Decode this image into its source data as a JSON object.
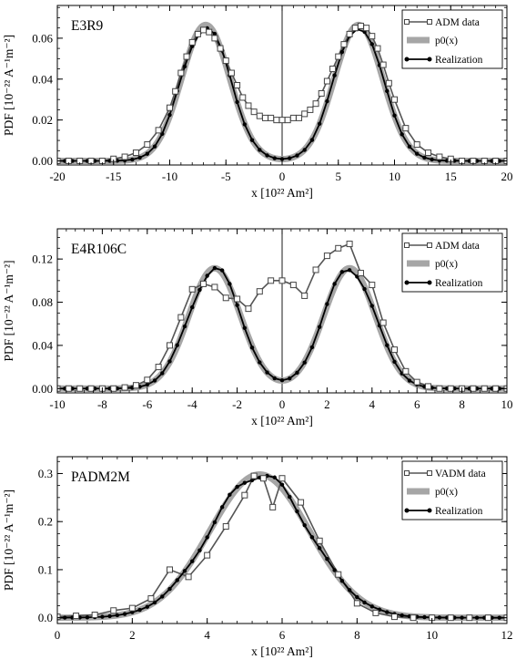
{
  "chart_data": [
    {
      "type": "line",
      "title": "E3R9",
      "xlabel": "x [10²² Am²]",
      "ylabel": "PDF [10⁻²² A⁻¹m⁻²]",
      "xlim": [
        -20,
        20
      ],
      "ylim": [
        -0.002,
        0.076
      ],
      "xticks": [
        -20,
        -15,
        -10,
        -5,
        0,
        5,
        10,
        15,
        20
      ],
      "yticks": [
        0.0,
        0.02,
        0.04,
        0.06
      ],
      "ytick_labels": [
        "0.00",
        "0.02",
        "0.04",
        "0.06"
      ],
      "zero_line": true,
      "legend": {
        "position": "top-right",
        "entries": [
          "ADM data",
          "p0(x)",
          "Realization"
        ]
      },
      "model": "bimodal",
      "params": {
        "mu": 6.8,
        "sigma": 2.15,
        "amp": 0.0665
      },
      "series": [
        {
          "name": "ADM data",
          "style": "squares",
          "x": [
            -20,
            -19,
            -18,
            -17,
            -16,
            -15,
            -14,
            -13,
            -12,
            -11,
            -10,
            -9.5,
            -9,
            -8.5,
            -8,
            -7.5,
            -7,
            -6.5,
            -6,
            -5.5,
            -5,
            -4.5,
            -4,
            -3.5,
            -3,
            -2.5,
            -2,
            -1.5,
            -1,
            -0.5,
            0,
            0.5,
            1,
            1.5,
            2,
            2.5,
            3,
            3.5,
            4,
            4.5,
            5,
            5.5,
            6,
            6.5,
            7,
            7.5,
            8,
            8.5,
            9,
            9.5,
            10,
            11,
            12,
            13,
            14,
            15,
            16,
            17,
            18,
            19,
            20
          ],
          "y": [
            0.0,
            0.0,
            0.0,
            0.0,
            0.0,
            0.001,
            0.002,
            0.004,
            0.008,
            0.015,
            0.026,
            0.034,
            0.043,
            0.051,
            0.058,
            0.062,
            0.064,
            0.063,
            0.06,
            0.055,
            0.049,
            0.043,
            0.037,
            0.031,
            0.027,
            0.024,
            0.022,
            0.021,
            0.021,
            0.02,
            0.02,
            0.02,
            0.021,
            0.021,
            0.023,
            0.025,
            0.028,
            0.033,
            0.039,
            0.045,
            0.051,
            0.057,
            0.062,
            0.065,
            0.066,
            0.065,
            0.061,
            0.055,
            0.047,
            0.038,
            0.03,
            0.016,
            0.008,
            0.004,
            0.002,
            0.001,
            0.0,
            0.0,
            0.0,
            0.0,
            0.0
          ]
        }
      ]
    },
    {
      "type": "line",
      "title": "E4R106C",
      "xlabel": "x [10²² Am²]",
      "ylabel": "PDF [10⁻²² A⁻¹m⁻²]",
      "xlim": [
        -10,
        10
      ],
      "ylim": [
        -0.004,
        0.148
      ],
      "xticks": [
        -10,
        -8,
        -6,
        -4,
        -2,
        0,
        2,
        4,
        6,
        8,
        10
      ],
      "yticks": [
        0.0,
        0.04,
        0.08,
        0.12
      ],
      "ytick_labels": [
        "0.00",
        "0.04",
        "0.08",
        "0.12"
      ],
      "zero_line": true,
      "legend": {
        "position": "top-right",
        "entries": [
          "ADM data",
          "p0(x)",
          "Realization"
        ]
      },
      "model": "bimodal",
      "params": {
        "mu": 3.0,
        "sigma": 1.15,
        "amp": 0.1115
      },
      "series": [
        {
          "name": "ADM data",
          "style": "squares",
          "x": [
            -10,
            -9.5,
            -9,
            -8.5,
            -8,
            -7.5,
            -7,
            -6.5,
            -6,
            -5.5,
            -5,
            -4.5,
            -4,
            -3.5,
            -3,
            -2.5,
            -2,
            -1.5,
            -1,
            -0.5,
            0,
            0.5,
            1,
            1.5,
            2,
            2.5,
            3,
            3.5,
            4,
            4.5,
            5,
            5.5,
            6,
            6.5,
            7,
            7.5,
            8,
            8.5,
            9,
            9.5,
            10
          ],
          "y": [
            0.0,
            0.0,
            0.0,
            0.0,
            0.0,
            0.0,
            0.001,
            0.003,
            0.008,
            0.02,
            0.04,
            0.066,
            0.092,
            0.097,
            0.094,
            0.084,
            0.083,
            0.074,
            0.09,
            0.1,
            0.1,
            0.096,
            0.086,
            0.11,
            0.123,
            0.13,
            0.134,
            0.107,
            0.096,
            0.061,
            0.036,
            0.016,
            0.006,
            0.002,
            0.0,
            0.0,
            0.0,
            0.0,
            0.0,
            0.0,
            0.0
          ]
        }
      ]
    },
    {
      "type": "line",
      "title": "PADM2M",
      "xlabel": "x [10²² Am²]",
      "ylabel": "PDF [10⁻²² A⁻¹m⁻²]",
      "xlim": [
        0,
        12
      ],
      "ylim": [
        -0.012,
        0.335
      ],
      "xticks": [
        0,
        2,
        4,
        6,
        8,
        10,
        12
      ],
      "yticks": [
        0.0,
        0.1,
        0.2,
        0.3
      ],
      "ytick_labels": [
        "0.0",
        "0.1",
        "0.2",
        "0.3"
      ],
      "zero_line": false,
      "legend": {
        "position": "top-right",
        "entries": [
          "VADM data",
          "p0(x)",
          "Realization"
        ]
      },
      "model": "unimodal",
      "params": {
        "mu": 5.4,
        "sigma": 1.33,
        "amp": 0.298
      },
      "series": [
        {
          "name": "VADM data",
          "style": "squares",
          "x": [
            0,
            0.5,
            1,
            1.5,
            2,
            2.5,
            3,
            3.5,
            4,
            4.5,
            5,
            5.25,
            5.5,
            5.75,
            6,
            6.5,
            7,
            7.5,
            8,
            8.5,
            9,
            9.5,
            10,
            10.5,
            11,
            11.5,
            12
          ],
          "y": [
            0.002,
            0.004,
            0.006,
            0.015,
            0.02,
            0.04,
            0.1,
            0.085,
            0.13,
            0.19,
            0.255,
            0.295,
            0.29,
            0.23,
            0.29,
            0.24,
            0.16,
            0.09,
            0.03,
            0.01,
            0.002,
            0.0,
            0.0,
            0.0,
            0.0,
            0.0,
            0.0
          ]
        }
      ]
    }
  ]
}
